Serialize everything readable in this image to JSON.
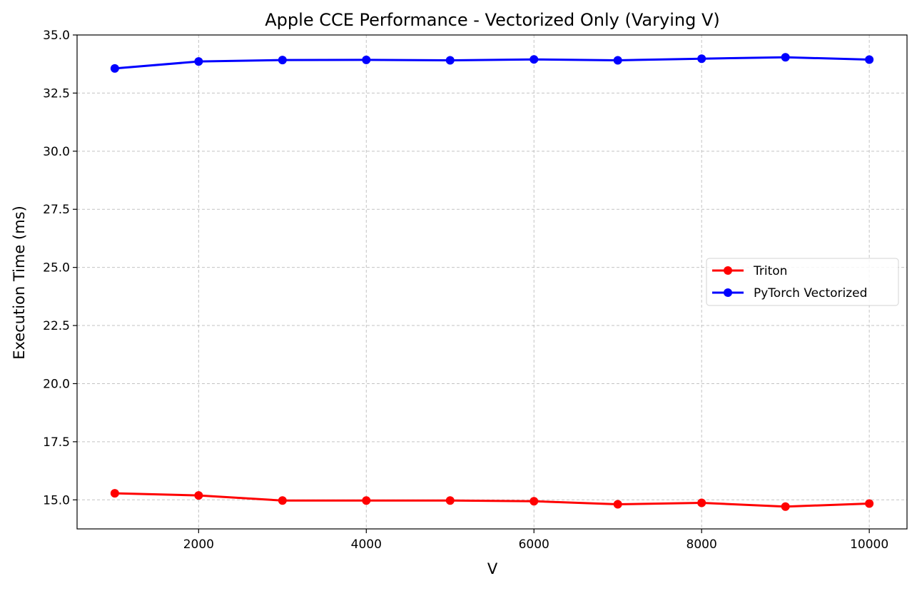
{
  "chart_data": {
    "type": "line",
    "title": "Apple CCE Performance - Vectorized Only (Varying V)",
    "xlabel": "V",
    "ylabel": "Execution Time (ms)",
    "x": [
      1000,
      2000,
      3000,
      4000,
      5000,
      6000,
      7000,
      8000,
      9000,
      10000
    ],
    "xlim": [
      550,
      10450
    ],
    "ylim": [
      13.75,
      35.0
    ],
    "xticks": [
      2000,
      4000,
      6000,
      8000,
      10000
    ],
    "xtick_labels": [
      "2000",
      "4000",
      "6000",
      "8000",
      "10000"
    ],
    "yticks": [
      15.0,
      17.5,
      20.0,
      22.5,
      25.0,
      27.5,
      30.0,
      32.5,
      35.0
    ],
    "ytick_labels": [
      "15.0",
      "17.5",
      "20.0",
      "22.5",
      "25.0",
      "27.5",
      "30.0",
      "32.5",
      "35.0"
    ],
    "grid": true,
    "legend_position": "center-right",
    "series": [
      {
        "name": "Triton",
        "color": "#ff0000",
        "marker": "circle",
        "values": [
          15.28,
          15.19,
          14.97,
          14.97,
          14.97,
          14.94,
          14.81,
          14.87,
          14.71,
          14.84
        ]
      },
      {
        "name": "PyTorch Vectorized",
        "color": "#0000ff",
        "marker": "circle",
        "values": [
          33.56,
          33.86,
          33.92,
          33.93,
          33.91,
          33.95,
          33.91,
          33.98,
          34.04,
          33.94
        ]
      }
    ]
  }
}
